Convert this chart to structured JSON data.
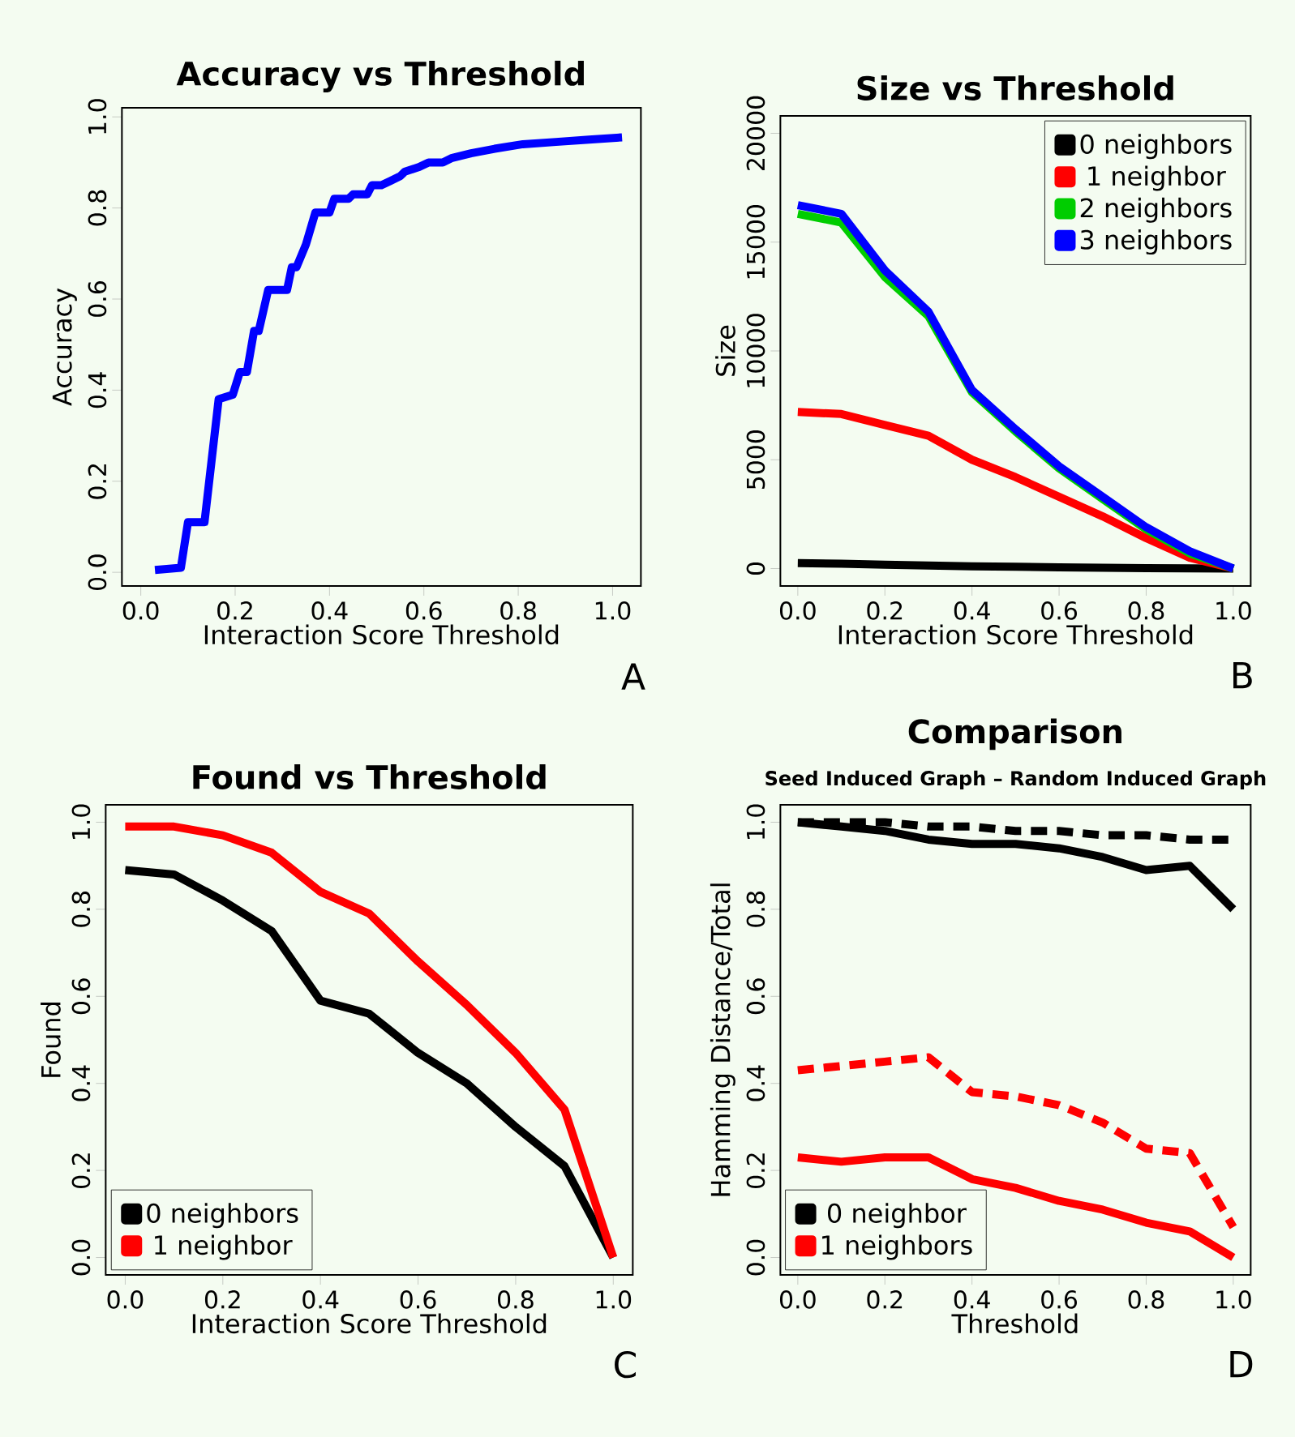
{
  "chart_data": [
    {
      "type": "line",
      "title": "Accuracy vs Threshold",
      "xlabel": "Interaction Score Threshold",
      "ylabel": "Accuracy",
      "annotations": [
        "A"
      ],
      "xlim": [
        -0.04,
        1.06
      ],
      "ylim": [
        -0.03,
        1.02
      ],
      "xticks": [
        {
          "value": 0,
          "label": "0.0"
        },
        {
          "value": 0.2,
          "label": "0.2"
        },
        {
          "value": 0.4,
          "label": "0.4"
        },
        {
          "value": 0.6,
          "label": "0.6"
        },
        {
          "value": 0.8,
          "label": "0.8"
        },
        {
          "value": 1,
          "label": "1.0"
        }
      ],
      "yticks": [
        {
          "value": 0,
          "label": "0.0"
        },
        {
          "value": 0.2,
          "label": "0.2"
        },
        {
          "value": 0.4,
          "label": "0.4"
        },
        {
          "value": 0.6,
          "label": "0.6"
        },
        {
          "value": 0.8,
          "label": "0.8"
        },
        {
          "value": 1,
          "label": "1.0"
        }
      ],
      "series": [
        {
          "color": "#0000ff",
          "x": [
            0.03,
            0.085,
            0.1,
            0.135,
            0.165,
            0.195,
            0.21,
            0.225,
            0.24,
            0.25,
            0.27,
            0.31,
            0.32,
            0.33,
            0.35,
            0.37,
            0.4,
            0.41,
            0.44,
            0.45,
            0.48,
            0.49,
            0.51,
            0.53,
            0.55,
            0.56,
            0.59,
            0.61,
            0.64,
            0.66,
            0.7,
            0.75,
            0.81,
            0.88,
            0.95,
            1.02
          ],
          "values": [
            0.005,
            0.01,
            0.11,
            0.11,
            0.38,
            0.39,
            0.44,
            0.44,
            0.53,
            0.53,
            0.62,
            0.62,
            0.67,
            0.67,
            0.72,
            0.79,
            0.79,
            0.82,
            0.82,
            0.83,
            0.83,
            0.85,
            0.85,
            0.86,
            0.87,
            0.88,
            0.89,
            0.9,
            0.9,
            0.91,
            0.92,
            0.93,
            0.94,
            0.945,
            0.95,
            0.955
          ]
        }
      ]
    },
    {
      "type": "line",
      "title": "Size vs Threshold",
      "xlabel": "Interaction Score Threshold",
      "ylabel": "Size",
      "annotations": [
        "B"
      ],
      "legend": "top right",
      "x": [
        0,
        0.1,
        0.2,
        0.3,
        0.4,
        0.5,
        0.6,
        0.7,
        0.8,
        0.9,
        1.0
      ],
      "xlim": [
        -0.04,
        1.04
      ],
      "ylim": [
        -800,
        20800
      ],
      "xticks": [
        {
          "value": 0,
          "label": "0.0"
        },
        {
          "value": 0.2,
          "label": "0.2"
        },
        {
          "value": 0.4,
          "label": "0.4"
        },
        {
          "value": 0.6,
          "label": "0.6"
        },
        {
          "value": 0.8,
          "label": "0.8"
        },
        {
          "value": 1,
          "label": "1.0"
        }
      ],
      "yticks": [
        0,
        5000,
        10000,
        15000,
        20000
      ],
      "series": [
        {
          "name": "0 neighbors",
          "color": "#000000",
          "values": [
            250,
            220,
            180,
            140,
            100,
            80,
            60,
            40,
            20,
            10,
            0
          ]
        },
        {
          "name": "1 neighbor",
          "color": "#ff0000",
          "values": [
            7200,
            7100,
            6600,
            6100,
            5000,
            4200,
            3300,
            2400,
            1400,
            500,
            0
          ]
        },
        {
          "name": "2 neighbors",
          "color": "#00cd00",
          "values": [
            16300,
            15900,
            13400,
            11600,
            8100,
            6300,
            4600,
            3200,
            1800,
            700,
            0
          ]
        },
        {
          "name": "3 neighbors",
          "color": "#0000ff",
          "values": [
            16700,
            16300,
            13700,
            11800,
            8200,
            6400,
            4700,
            3300,
            1900,
            800,
            0
          ]
        }
      ]
    },
    {
      "type": "line",
      "title": "Found vs Threshold",
      "xlabel": "Interaction Score Threshold",
      "ylabel": "Found",
      "annotations": [
        "C"
      ],
      "legend": "bottom left",
      "x": [
        0,
        0.1,
        0.2,
        0.3,
        0.4,
        0.5,
        0.6,
        0.7,
        0.8,
        0.9,
        1.0
      ],
      "xlim": [
        -0.04,
        1.04
      ],
      "ylim": [
        -0.04,
        1.04
      ],
      "xticks": [
        {
          "value": 0,
          "label": "0.0"
        },
        {
          "value": 0.2,
          "label": "0.2"
        },
        {
          "value": 0.4,
          "label": "0.4"
        },
        {
          "value": 0.6,
          "label": "0.6"
        },
        {
          "value": 0.8,
          "label": "0.8"
        },
        {
          "value": 1,
          "label": "1.0"
        }
      ],
      "yticks": [
        {
          "value": 0,
          "label": "0.0"
        },
        {
          "value": 0.2,
          "label": "0.2"
        },
        {
          "value": 0.4,
          "label": "0.4"
        },
        {
          "value": 0.6,
          "label": "0.6"
        },
        {
          "value": 0.8,
          "label": "0.8"
        },
        {
          "value": 1,
          "label": "1.0"
        }
      ],
      "series": [
        {
          "name": "0 neighbors",
          "color": "#000000",
          "values": [
            0.89,
            0.88,
            0.82,
            0.75,
            0.59,
            0.56,
            0.47,
            0.4,
            0.3,
            0.21,
            0.0
          ]
        },
        {
          "name": "1 neighbor",
          "color": "#ff0000",
          "values": [
            0.99,
            0.99,
            0.97,
            0.93,
            0.84,
            0.79,
            0.68,
            0.58,
            0.47,
            0.34,
            0.0
          ]
        }
      ]
    },
    {
      "type": "line",
      "title": "Comparison",
      "subtitle": "Seed Induced Graph – Random Induced Graph",
      "xlabel": "Threshold",
      "ylabel": "Hamming Distance/Total",
      "annotations": [
        "D"
      ],
      "legend": "bottom left",
      "x": [
        0,
        0.1,
        0.2,
        0.3,
        0.4,
        0.5,
        0.6,
        0.7,
        0.8,
        0.9,
        1.0
      ],
      "xlim": [
        -0.04,
        1.04
      ],
      "ylim": [
        -0.04,
        1.04
      ],
      "xticks": [
        {
          "value": 0,
          "label": "0.0"
        },
        {
          "value": 0.2,
          "label": "0.2"
        },
        {
          "value": 0.4,
          "label": "0.4"
        },
        {
          "value": 0.6,
          "label": "0.6"
        },
        {
          "value": 0.8,
          "label": "0.8"
        },
        {
          "value": 1,
          "label": "1.0"
        }
      ],
      "yticks": [
        {
          "value": 0,
          "label": "0.0"
        },
        {
          "value": 0.2,
          "label": "0.2"
        },
        {
          "value": 0.4,
          "label": "0.4"
        },
        {
          "value": 0.6,
          "label": "0.6"
        },
        {
          "value": 0.8,
          "label": "0.8"
        },
        {
          "value": 1,
          "label": "1.0"
        }
      ],
      "series": [
        {
          "name": "0 neighbor",
          "color": "#000000",
          "values": [
            1.0,
            0.99,
            0.98,
            0.96,
            0.95,
            0.95,
            0.94,
            0.92,
            0.89,
            0.9,
            0.8
          ]
        },
        {
          "color": "#000000",
          "line_style": "dashed",
          "values": [
            1.0,
            1.0,
            1.0,
            0.99,
            0.99,
            0.98,
            0.98,
            0.97,
            0.97,
            0.96,
            0.96
          ]
        },
        {
          "name": "1 neighbors",
          "color": "#ff0000",
          "values": [
            0.23,
            0.22,
            0.23,
            0.23,
            0.18,
            0.16,
            0.13,
            0.11,
            0.08,
            0.06,
            0.0
          ]
        },
        {
          "color": "#ff0000",
          "line_style": "dashed",
          "values": [
            0.43,
            0.44,
            0.45,
            0.46,
            0.38,
            0.37,
            0.35,
            0.31,
            0.25,
            0.24,
            0.07
          ]
        }
      ]
    }
  ]
}
